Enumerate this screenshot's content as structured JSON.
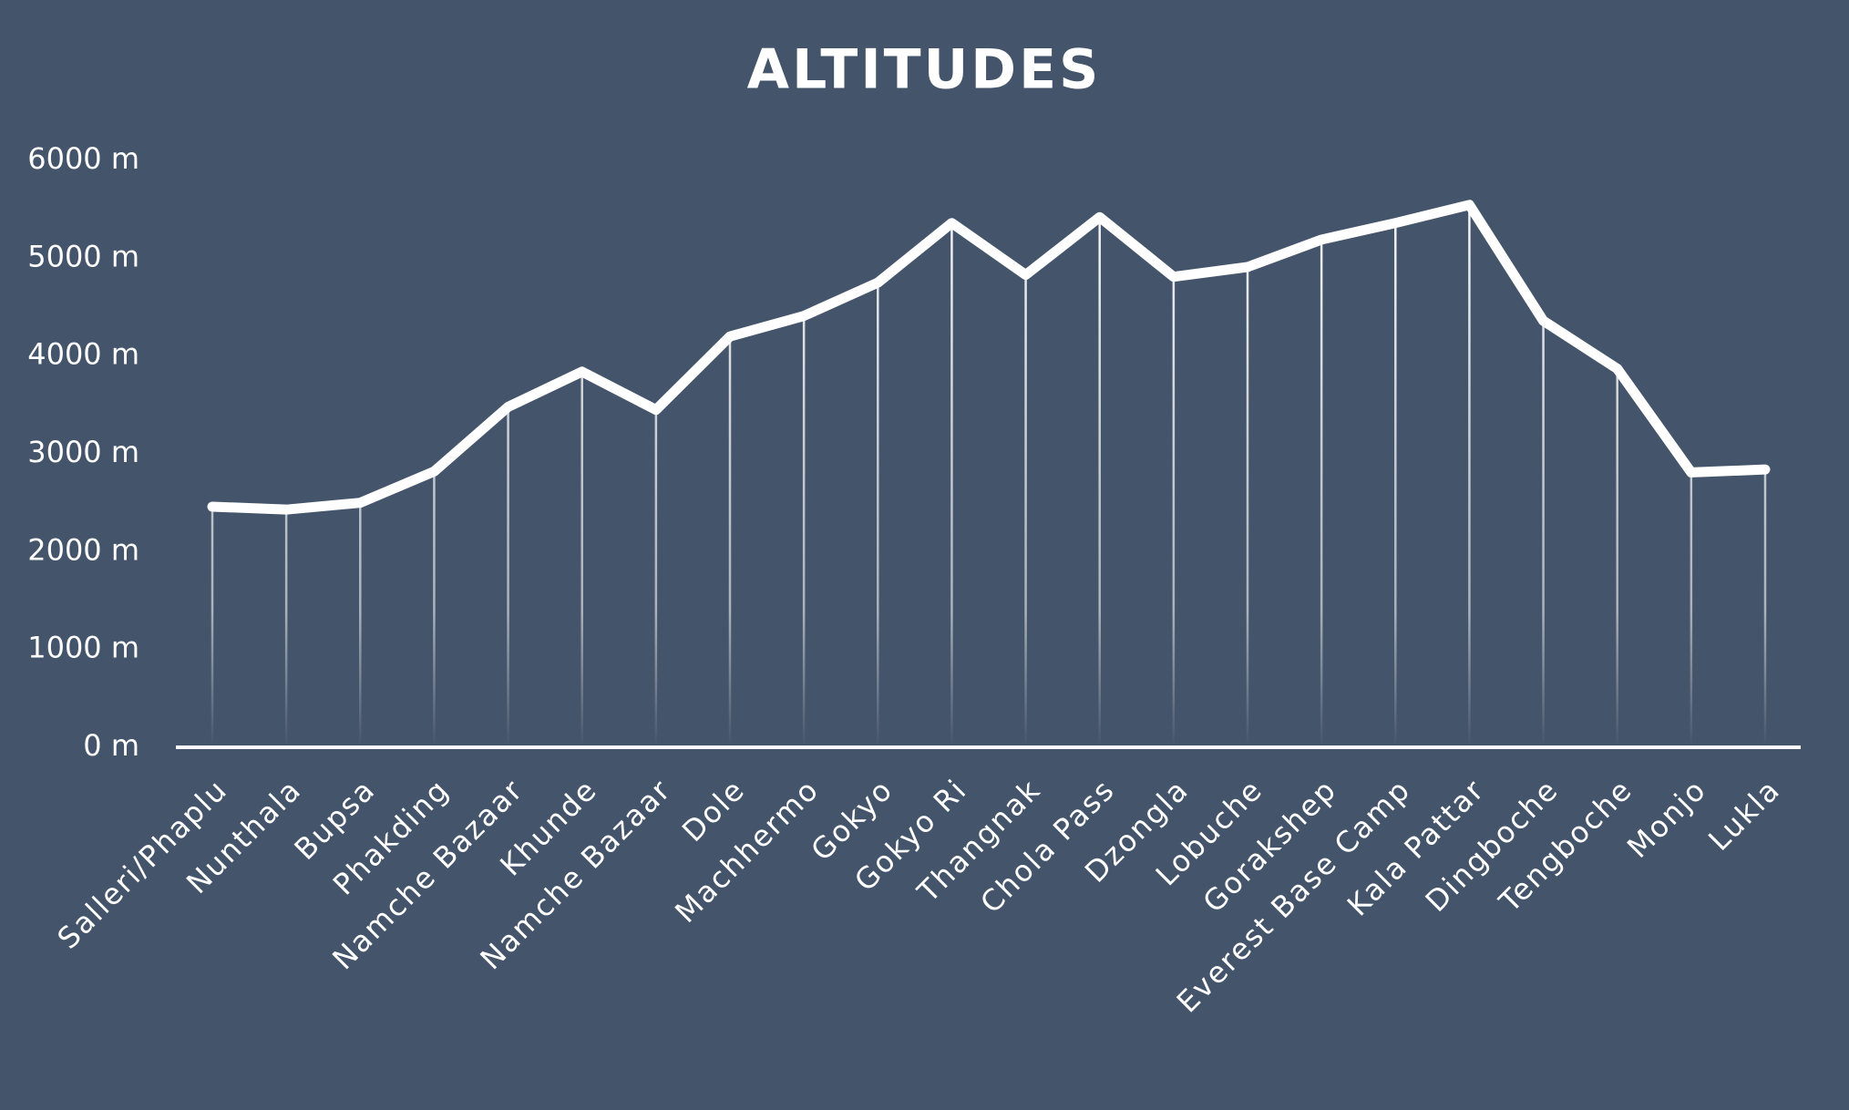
{
  "chart_data": {
    "type": "line",
    "title": "ALTITUDES",
    "categories": [
      "Salleri/Phaplu",
      "Nunthala",
      "Bupsa",
      "Phakding",
      "Namche Bazaar",
      "Khunde",
      "Namche Bazaar",
      "Dole",
      "Machhermo",
      "Gokyo",
      "Gokyo Ri",
      "Thangnak",
      "Chola Pass",
      "Dzongla",
      "Lobuche",
      "Gorakshep",
      "Everest Base Camp",
      "Kala Pattar",
      "Dingboche",
      "Tengboche",
      "Monjo",
      "Lukla"
    ],
    "values": [
      2460,
      2430,
      2500,
      2820,
      3480,
      3840,
      3450,
      4200,
      4410,
      4750,
      5360,
      4830,
      5420,
      4810,
      4910,
      5190,
      5360,
      5545,
      4360,
      3870,
      2810,
      2840
    ],
    "color": "#ffffff",
    "ylim": [
      0,
      6000
    ],
    "yticks": [
      {
        "value": 0,
        "label": "0 m"
      },
      {
        "value": 1000,
        "label": "1000 m"
      },
      {
        "value": 2000,
        "label": "2000 m"
      },
      {
        "value": 3000,
        "label": "3000 m"
      },
      {
        "value": 4000,
        "label": "4000 m"
      },
      {
        "value": 5000,
        "label": "5000 m"
      },
      {
        "value": 6000,
        "label": "6000 m"
      }
    ],
    "grid": false
  }
}
